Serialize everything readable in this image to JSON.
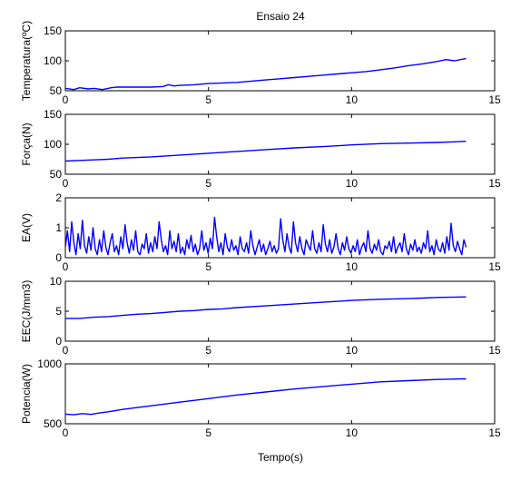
{
  "chart_data": [
    {
      "type": "line",
      "title": "Ensaio 24",
      "xlabel": "",
      "ylabel": "Temperatura(ºC)",
      "xlim": [
        0,
        15
      ],
      "ylim": [
        50,
        150
      ],
      "xticks": [
        "0",
        "5",
        "10",
        "15"
      ],
      "yticks": [
        "50",
        "100",
        "150"
      ],
      "grid": false,
      "series": [
        {
          "color": "#0000ff",
          "x": [
            0,
            0.3,
            0.5,
            0.8,
            1.0,
            1.3,
            1.6,
            1.8,
            2.0,
            2.5,
            3.0,
            3.4,
            3.6,
            3.8,
            4.0,
            4.5,
            5.0,
            5.5,
            6.0,
            6.5,
            7.0,
            7.5,
            8.0,
            8.5,
            9.0,
            9.5,
            10.0,
            10.5,
            11.0,
            11.5,
            12.0,
            12.5,
            13.0,
            13.3,
            13.6,
            14.0
          ],
          "y": [
            54,
            52,
            55,
            53,
            54,
            52,
            55,
            56,
            56,
            56,
            56,
            57,
            60,
            58,
            59,
            60,
            62,
            63,
            64,
            66,
            68,
            70,
            72,
            74,
            76,
            78,
            80,
            82,
            85,
            88,
            92,
            95,
            99,
            102,
            100,
            104
          ]
        }
      ]
    },
    {
      "type": "line",
      "xlabel": "",
      "ylabel": "Força(N)",
      "xlim": [
        0,
        15
      ],
      "ylim": [
        50,
        150
      ],
      "xticks": [
        "0",
        "5",
        "10",
        "15"
      ],
      "yticks": [
        "50",
        "100",
        "150"
      ],
      "grid": false,
      "series": [
        {
          "color": "#0000ff",
          "x": [
            0,
            0.5,
            1.0,
            1.5,
            2.0,
            3.0,
            4.0,
            5.0,
            6.0,
            7.0,
            8.0,
            9.0,
            10.0,
            11.0,
            12.0,
            13.0,
            13.5,
            14.0
          ],
          "y": [
            72,
            73,
            74,
            75,
            77,
            79,
            82,
            85,
            88,
            91,
            94,
            96,
            99,
            101,
            102,
            103,
            104,
            105
          ]
        }
      ]
    },
    {
      "type": "line",
      "xlabel": "",
      "ylabel": "EA(V)",
      "xlim": [
        0,
        15
      ],
      "ylim": [
        0,
        2
      ],
      "xticks": [
        "0",
        "5",
        "10",
        "15"
      ],
      "yticks": [
        "0",
        "1",
        "2"
      ],
      "grid": false,
      "series": [
        {
          "color": "#0000ff",
          "x_start": 0,
          "x_end": 14,
          "y": [
            0.35,
            0.9,
            0.2,
            1.2,
            0.5,
            0.1,
            0.8,
            0.3,
            1.25,
            0.4,
            0.15,
            0.7,
            0.25,
            1.0,
            0.3,
            0.1,
            0.6,
            0.2,
            0.9,
            0.35,
            0.1,
            0.5,
            0.8,
            0.2,
            0.4,
            0.1,
            0.7,
            0.3,
            1.1,
            0.5,
            0.15,
            0.6,
            0.25,
            0.9,
            0.2,
            0.1,
            0.45,
            0.3,
            0.8,
            0.15,
            0.5,
            0.2,
            0.7,
            0.3,
            1.2,
            0.6,
            0.2,
            0.4,
            0.1,
            0.9,
            0.3,
            0.55,
            0.2,
            0.8,
            0.15,
            0.35,
            0.1,
            0.6,
            0.3,
            0.75,
            0.2,
            0.45,
            0.1,
            0.3,
            0.9,
            0.25,
            0.5,
            0.15,
            0.65,
            0.3,
            1.35,
            0.7,
            0.2,
            0.5,
            0.1,
            0.8,
            0.35,
            0.2,
            0.6,
            0.25,
            0.4,
            0.1,
            0.7,
            0.3,
            0.2,
            0.5,
            0.15,
            0.9,
            0.4,
            0.1,
            0.35,
            0.6,
            0.2,
            0.45,
            0.1,
            0.3,
            0.55,
            0.2,
            0.4,
            0.15,
            0.3,
            1.3,
            0.6,
            0.2,
            0.8,
            0.35,
            0.15,
            1.2,
            0.5,
            0.2,
            0.7,
            0.3,
            0.1,
            0.6,
            0.4,
            0.25,
            0.9,
            0.3,
            0.15,
            0.5,
            0.2,
            1.1,
            0.45,
            0.2,
            0.6,
            0.15,
            0.35,
            0.8,
            0.3,
            0.1,
            0.5,
            0.25,
            0.7,
            0.3,
            0.15,
            0.4,
            0.2,
            0.6,
            0.1,
            0.35,
            0.5,
            0.2,
            0.9,
            0.3,
            0.15,
            0.45,
            0.25,
            0.6,
            0.2,
            0.1,
            0.4,
            0.3,
            0.55,
            0.2,
            0.7,
            0.15,
            0.35,
            0.5,
            0.2,
            0.8,
            0.3,
            0.1,
            0.45,
            0.25,
            0.6,
            0.2,
            0.35,
            0.15,
            0.5,
            0.3,
            0.9,
            0.2,
            0.4,
            0.1,
            0.6,
            0.3,
            0.2,
            0.5,
            0.15,
            0.7,
            0.25,
            1.15,
            0.4,
            0.2,
            0.55,
            0.3,
            0.1,
            0.6,
            0.35
          ]
        }
      ]
    },
    {
      "type": "line",
      "xlabel": "",
      "ylabel": "EEC(J/mm3)",
      "xlim": [
        0,
        15
      ],
      "ylim": [
        0,
        10
      ],
      "xticks": [
        "0",
        "5",
        "10",
        "15"
      ],
      "yticks": [
        "0",
        "5",
        "10"
      ],
      "grid": false,
      "series": [
        {
          "color": "#0000ff",
          "x": [
            0,
            0.5,
            1.0,
            1.5,
            2.0,
            2.5,
            3.0,
            3.5,
            4.0,
            4.5,
            5.0,
            5.5,
            6.0,
            7.0,
            8.0,
            9.0,
            10.0,
            11.0,
            12.0,
            12.5,
            13.0,
            14.0
          ],
          "y": [
            3.8,
            3.8,
            4.0,
            4.1,
            4.3,
            4.5,
            4.6,
            4.8,
            5.0,
            5.1,
            5.3,
            5.4,
            5.6,
            5.9,
            6.2,
            6.5,
            6.8,
            7.0,
            7.1,
            7.2,
            7.3,
            7.4
          ]
        }
      ]
    },
    {
      "type": "line",
      "title": "",
      "xlabel": "Tempo(s)",
      "ylabel": "Potencia(W)",
      "xlim": [
        0,
        15
      ],
      "ylim": [
        500,
        1000
      ],
      "xticks": [
        "0",
        "5",
        "10",
        "15"
      ],
      "yticks": [
        "500",
        "1000"
      ],
      "grid": false,
      "series": [
        {
          "color": "#0000ff",
          "x": [
            0,
            0.3,
            0.6,
            0.9,
            1.2,
            1.5,
            2.0,
            3.0,
            4.0,
            5.0,
            6.0,
            7.0,
            8.0,
            9.0,
            10.0,
            11.0,
            12.0,
            13.0,
            14.0
          ],
          "y": [
            580,
            575,
            585,
            578,
            590,
            600,
            620,
            650,
            680,
            710,
            740,
            765,
            790,
            810,
            830,
            850,
            860,
            870,
            875
          ]
        }
      ]
    }
  ]
}
